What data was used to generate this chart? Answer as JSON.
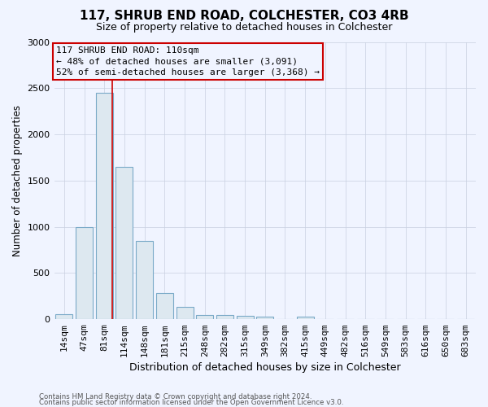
{
  "title": "117, SHRUB END ROAD, COLCHESTER, CO3 4RB",
  "subtitle": "Size of property relative to detached houses in Colchester",
  "xlabel": "Distribution of detached houses by size in Colchester",
  "ylabel": "Number of detached properties",
  "categories": [
    "14sqm",
    "47sqm",
    "81sqm",
    "114sqm",
    "148sqm",
    "181sqm",
    "215sqm",
    "248sqm",
    "282sqm",
    "315sqm",
    "349sqm",
    "382sqm",
    "415sqm",
    "449sqm",
    "482sqm",
    "516sqm",
    "549sqm",
    "583sqm",
    "616sqm",
    "650sqm",
    "683sqm"
  ],
  "values": [
    55,
    1000,
    2450,
    1650,
    850,
    280,
    130,
    50,
    45,
    40,
    25,
    0,
    30,
    0,
    0,
    0,
    0,
    0,
    0,
    0,
    0
  ],
  "bar_color": "#dde8f0",
  "bar_edge_color": "#7aaac8",
  "bar_linewidth": 0.8,
  "property_line_x": 2.4,
  "annotation_text_line1": "117 SHRUB END ROAD: 110sqm",
  "annotation_text_line2": "← 48% of detached houses are smaller (3,091)",
  "annotation_text_line3": "52% of semi-detached houses are larger (3,368) →",
  "annotation_box_color": "#cc0000",
  "ylim": [
    0,
    3000
  ],
  "yticks": [
    0,
    500,
    1000,
    1500,
    2000,
    2500,
    3000
  ],
  "footer_line1": "Contains HM Land Registry data © Crown copyright and database right 2024.",
  "footer_line2": "Contains public sector information licensed under the Open Government Licence v3.0.",
  "bg_color": "#f0f4ff",
  "grid_color": "#c8d0e0",
  "title_fontsize": 11,
  "subtitle_fontsize": 9,
  "ylabel_fontsize": 8.5,
  "xlabel_fontsize": 9,
  "tick_fontsize": 8,
  "annot_fontsize": 8
}
